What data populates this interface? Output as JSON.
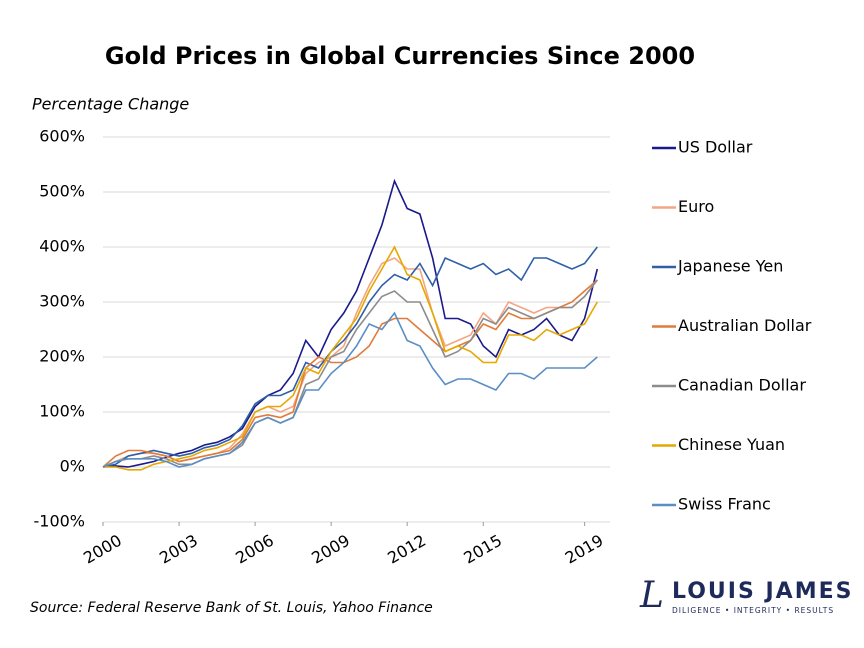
{
  "chart_data": {
    "type": "line",
    "title": "Gold Prices in Global Currencies Since 2000",
    "y_label": "Percentage Change",
    "source": "Source: Federal Reserve Bank of St. Louis, Yahoo Finance",
    "x": [
      2000,
      2000.5,
      2001,
      2001.5,
      2002,
      2002.5,
      2003,
      2003.5,
      2004,
      2004.5,
      2005,
      2005.5,
      2006,
      2006.5,
      2007,
      2007.5,
      2008,
      2008.5,
      2009,
      2009.5,
      2010,
      2010.5,
      2011,
      2011.5,
      2012,
      2012.5,
      2013,
      2013.5,
      2014,
      2014.5,
      2015,
      2015.5,
      2016,
      2016.5,
      2017,
      2017.5,
      2018,
      2018.5,
      2019,
      2019.5
    ],
    "xlim": [
      2000,
      2020
    ],
    "xticks": [
      2000,
      2003,
      2006,
      2009,
      2012,
      2015,
      2019
    ],
    "ylim": [
      -100,
      600
    ],
    "yticks": [
      {
        "value": -100,
        "label": "-100%"
      },
      {
        "value": 0,
        "label": "0%"
      },
      {
        "value": 100,
        "label": "100%"
      },
      {
        "value": 200,
        "label": "200%"
      },
      {
        "value": 300,
        "label": "300%"
      },
      {
        "value": 400,
        "label": "400%"
      },
      {
        "value": 500,
        "label": "500%"
      },
      {
        "value": 600,
        "label": "600%"
      }
    ],
    "grid": true,
    "legend": "right",
    "series": [
      {
        "name": "US Dollar",
        "color": "#1a1a8c",
        "values": [
          0,
          2,
          0,
          5,
          10,
          18,
          25,
          30,
          40,
          45,
          55,
          70,
          110,
          130,
          140,
          170,
          230,
          200,
          250,
          280,
          320,
          380,
          440,
          520,
          470,
          460,
          380,
          270,
          270,
          260,
          220,
          200,
          250,
          240,
          250,
          270,
          240,
          230,
          270,
          360
        ]
      },
      {
        "name": "Euro",
        "color": "#f4a582",
        "values": [
          0,
          10,
          20,
          25,
          25,
          20,
          10,
          15,
          20,
          25,
          35,
          60,
          100,
          110,
          100,
          110,
          170,
          190,
          200,
          220,
          280,
          330,
          370,
          380,
          360,
          360,
          280,
          220,
          230,
          240,
          280,
          260,
          300,
          290,
          280,
          290,
          290,
          290,
          310,
          340
        ]
      },
      {
        "name": "Japanese Yen",
        "color": "#2e5fa8",
        "values": [
          0,
          5,
          20,
          25,
          30,
          25,
          20,
          25,
          35,
          40,
          50,
          75,
          115,
          130,
          130,
          140,
          190,
          180,
          210,
          230,
          260,
          300,
          330,
          350,
          340,
          370,
          330,
          380,
          370,
          360,
          370,
          350,
          360,
          340,
          380,
          380,
          370,
          360,
          370,
          400
        ]
      },
      {
        "name": "Australian Dollar",
        "color": "#e07b39",
        "values": [
          0,
          20,
          30,
          30,
          25,
          20,
          10,
          15,
          20,
          25,
          30,
          50,
          90,
          95,
          90,
          100,
          180,
          200,
          190,
          190,
          200,
          220,
          260,
          270,
          270,
          250,
          230,
          210,
          220,
          230,
          260,
          250,
          280,
          270,
          270,
          280,
          290,
          300,
          320,
          340
        ]
      },
      {
        "name": "Canadian Dollar",
        "color": "#8c8c8c",
        "values": [
          0,
          10,
          15,
          15,
          20,
          15,
          5,
          5,
          15,
          20,
          25,
          40,
          80,
          90,
          80,
          90,
          150,
          160,
          200,
          210,
          250,
          280,
          310,
          320,
          300,
          300,
          250,
          200,
          210,
          230,
          270,
          260,
          290,
          280,
          270,
          280,
          290,
          290,
          310,
          340
        ]
      },
      {
        "name": "Chinese Yuan",
        "color": "#e6a800",
        "values": [
          0,
          0,
          -5,
          -5,
          5,
          10,
          15,
          20,
          30,
          35,
          45,
          55,
          100,
          110,
          110,
          130,
          180,
          170,
          210,
          240,
          270,
          320,
          360,
          400,
          350,
          340,
          280,
          210,
          220,
          210,
          190,
          190,
          240,
          240,
          230,
          250,
          240,
          250,
          260,
          300
        ]
      },
      {
        "name": "Swiss Franc",
        "color": "#5b8ec4",
        "values": [
          0,
          10,
          15,
          15,
          15,
          10,
          0,
          5,
          15,
          20,
          25,
          45,
          80,
          90,
          80,
          90,
          140,
          140,
          170,
          190,
          220,
          260,
          250,
          280,
          230,
          220,
          180,
          150,
          160,
          160,
          150,
          140,
          170,
          170,
          160,
          180,
          180,
          180,
          180,
          200
        ]
      }
    ]
  },
  "logo": {
    "mark": "L",
    "name": "LOUIS JAMES",
    "tagline": "DILIGENCE • INTEGRITY • RESULTS"
  }
}
